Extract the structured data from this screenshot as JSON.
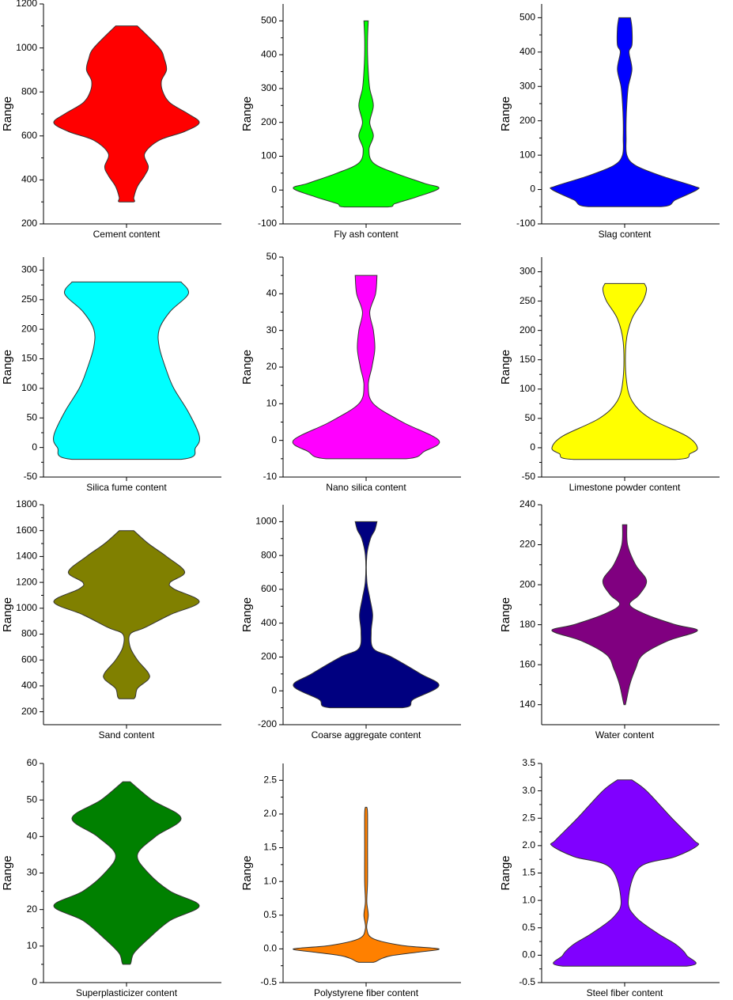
{
  "chart_data": [
    {
      "type": "violin",
      "xlabel": "Cement content",
      "ylabel": "Range",
      "color": "#ff0000",
      "ylim": [
        200,
        1200
      ],
      "yticks": [
        200,
        400,
        600,
        800,
        1000,
        1200
      ],
      "y": [
        1100,
        1000,
        950,
        900,
        850,
        800,
        750,
        700,
        660,
        620,
        580,
        520,
        460,
        420,
        370,
        320,
        300
      ],
      "density": [
        0.15,
        0.45,
        0.52,
        0.55,
        0.48,
        0.5,
        0.6,
        0.85,
        1.0,
        0.8,
        0.45,
        0.25,
        0.3,
        0.25,
        0.15,
        0.1,
        0.1
      ]
    },
    {
      "type": "violin",
      "xlabel": "Fly ash content",
      "ylabel": "Range",
      "color": "#00ff00",
      "ylim": [
        -100,
        550
      ],
      "yticks": [
        -100,
        0,
        100,
        200,
        300,
        400,
        500
      ],
      "y": [
        500,
        450,
        400,
        350,
        300,
        250,
        200,
        160,
        120,
        80,
        50,
        20,
        5,
        -20,
        -40,
        -50
      ],
      "density": [
        0.03,
        0.02,
        0.02,
        0.03,
        0.05,
        0.1,
        0.05,
        0.1,
        0.04,
        0.1,
        0.4,
        0.8,
        1.0,
        0.7,
        0.4,
        0.3
      ]
    },
    {
      "type": "violin",
      "xlabel": "Slag content",
      "ylabel": "Range",
      "color": "#0000ff",
      "ylim": [
        -100,
        540
      ],
      "yticks": [
        -100,
        0,
        100,
        200,
        300,
        400,
        500
      ],
      "y": [
        500,
        470,
        420,
        400,
        350,
        300,
        250,
        200,
        150,
        100,
        70,
        40,
        10,
        0,
        -30,
        -50
      ],
      "density": [
        0.08,
        0.1,
        0.1,
        0.06,
        0.1,
        0.05,
        0.03,
        0.02,
        0.02,
        0.03,
        0.15,
        0.5,
        0.95,
        1.0,
        0.7,
        0.5
      ]
    },
    {
      "type": "violin",
      "xlabel": "Silica fume content",
      "ylabel": "Range",
      "color": "#00ffff",
      "ylim": [
        -50,
        322
      ],
      "yticks": [
        -50,
        0,
        50,
        100,
        150,
        200,
        250,
        300
      ],
      "y": [
        280,
        260,
        230,
        200,
        170,
        130,
        100,
        60,
        20,
        0,
        -20
      ],
      "density": [
        0.75,
        0.85,
        0.6,
        0.45,
        0.45,
        0.55,
        0.65,
        0.85,
        1.0,
        0.95,
        0.75
      ]
    },
    {
      "type": "violin",
      "xlabel": "Nano silica content",
      "ylabel": "Range",
      "color": "#ff00ff",
      "ylim": [
        -10,
        50
      ],
      "yticks": [
        -10,
        0,
        10,
        20,
        30,
        40,
        50
      ],
      "y": [
        45,
        40,
        35,
        30,
        25,
        20,
        15,
        10,
        5,
        0,
        -3,
        -5
      ],
      "density": [
        0.15,
        0.13,
        0.05,
        0.1,
        0.12,
        0.08,
        0.03,
        0.1,
        0.5,
        1.0,
        0.8,
        0.55
      ]
    },
    {
      "type": "violin",
      "xlabel": "Limestone powder content",
      "ylabel": "Range",
      "color": "#ffff00",
      "ylim": [
        -50,
        325
      ],
      "yticks": [
        -50,
        0,
        50,
        100,
        150,
        200,
        250,
        300
      ],
      "y": [
        280,
        270,
        250,
        220,
        180,
        120,
        80,
        50,
        20,
        0,
        -10,
        -20
      ],
      "density": [
        0.27,
        0.3,
        0.25,
        0.1,
        0.02,
        0.02,
        0.1,
        0.35,
        0.85,
        1.0,
        0.9,
        0.7
      ]
    },
    {
      "type": "violin",
      "xlabel": "Sand content",
      "ylabel": "Range",
      "color": "#808000",
      "ylim": [
        100,
        1800
      ],
      "yticks": [
        200,
        400,
        600,
        800,
        1000,
        1200,
        1400,
        1600,
        1800
      ],
      "y": [
        1600,
        1500,
        1400,
        1280,
        1200,
        1150,
        1050,
        950,
        850,
        800,
        700,
        600,
        500,
        450,
        380,
        300
      ],
      "density": [
        0.1,
        0.3,
        0.55,
        0.8,
        0.6,
        0.65,
        1.0,
        0.6,
        0.25,
        0.05,
        0.05,
        0.15,
        0.3,
        0.3,
        0.15,
        0.1
      ]
    },
    {
      "type": "violin",
      "xlabel": "Coarse aggregate content",
      "ylabel": "Range",
      "color": "#000080",
      "ylim": [
        -200,
        1100
      ],
      "yticks": [
        -200,
        0,
        200,
        400,
        600,
        800,
        1000
      ],
      "y": [
        1000,
        950,
        900,
        800,
        650,
        550,
        450,
        350,
        250,
        200,
        100,
        30,
        -50,
        -100
      ],
      "density": [
        0.15,
        0.12,
        0.06,
        0.01,
        0.01,
        0.05,
        0.09,
        0.07,
        0.1,
        0.35,
        0.75,
        1.0,
        0.65,
        0.5
      ]
    },
    {
      "type": "violin",
      "xlabel": "Water content",
      "ylabel": "Range",
      "color": "#800080",
      "ylim": [
        130,
        240
      ],
      "yticks": [
        140,
        160,
        180,
        200,
        220,
        240
      ],
      "y": [
        230,
        220,
        210,
        202,
        195,
        190,
        185,
        180,
        177,
        172,
        165,
        158,
        150,
        140
      ],
      "density": [
        0.03,
        0.04,
        0.15,
        0.3,
        0.2,
        0.07,
        0.3,
        0.7,
        1.0,
        0.6,
        0.25,
        0.15,
        0.07,
        0.01
      ]
    },
    {
      "type": "violin",
      "xlabel": "Superplasticizer content",
      "ylabel": "Range",
      "color": "#008000",
      "ylim": [
        0,
        60
      ],
      "yticks": [
        0,
        10,
        20,
        30,
        40,
        50,
        60
      ],
      "y": [
        55,
        50,
        45,
        40,
        35,
        30,
        25,
        21,
        17,
        12,
        8,
        5
      ],
      "density": [
        0.05,
        0.35,
        0.75,
        0.4,
        0.15,
        0.3,
        0.6,
        1.0,
        0.6,
        0.3,
        0.1,
        0.05
      ]
    },
    {
      "type": "violin",
      "xlabel": "Polystyrene fiber content",
      "ylabel": "Range",
      "color": "#ff8000",
      "ylim": [
        -0.5,
        2.75
      ],
      "yticks": [
        -0.5,
        {
          "value": 0,
          "label": "0.0"
        },
        0.5,
        {
          "value": 1,
          "label": "1.0"
        },
        1.5,
        {
          "value": 2,
          "label": "2.0"
        },
        2.5
      ],
      "y": [
        2.1,
        2.0,
        1.5,
        1.0,
        0.7,
        0.5,
        0.3,
        0.15,
        0.05,
        0,
        -0.05,
        -0.1,
        -0.15,
        -0.2
      ],
      "density": [
        0.01,
        0.02,
        0.02,
        0.02,
        0.01,
        0.03,
        0.01,
        0.1,
        0.5,
        1.0,
        0.7,
        0.35,
        0.2,
        0.1
      ]
    },
    {
      "type": "violin",
      "xlabel": "Steel fiber content",
      "ylabel": "Range",
      "color": "#8000ff",
      "ylim": [
        -0.5,
        3.5
      ],
      "yticks": [
        -0.5,
        {
          "value": 0,
          "label": "0.0"
        },
        0.5,
        {
          "value": 1,
          "label": "1.0"
        },
        1.5,
        {
          "value": 2,
          "label": "2.0"
        },
        2.5,
        {
          "value": 3,
          "label": "3.0"
        },
        3.5
      ],
      "y": [
        3.2,
        3.0,
        2.5,
        2.1,
        2.0,
        1.8,
        1.6,
        1.0,
        0.7,
        0.4,
        0.2,
        0,
        -0.2
      ],
      "density": [
        0.1,
        0.3,
        0.65,
        0.95,
        1.0,
        0.7,
        0.2,
        0.05,
        0.15,
        0.45,
        0.7,
        0.85,
        0.85
      ]
    }
  ]
}
